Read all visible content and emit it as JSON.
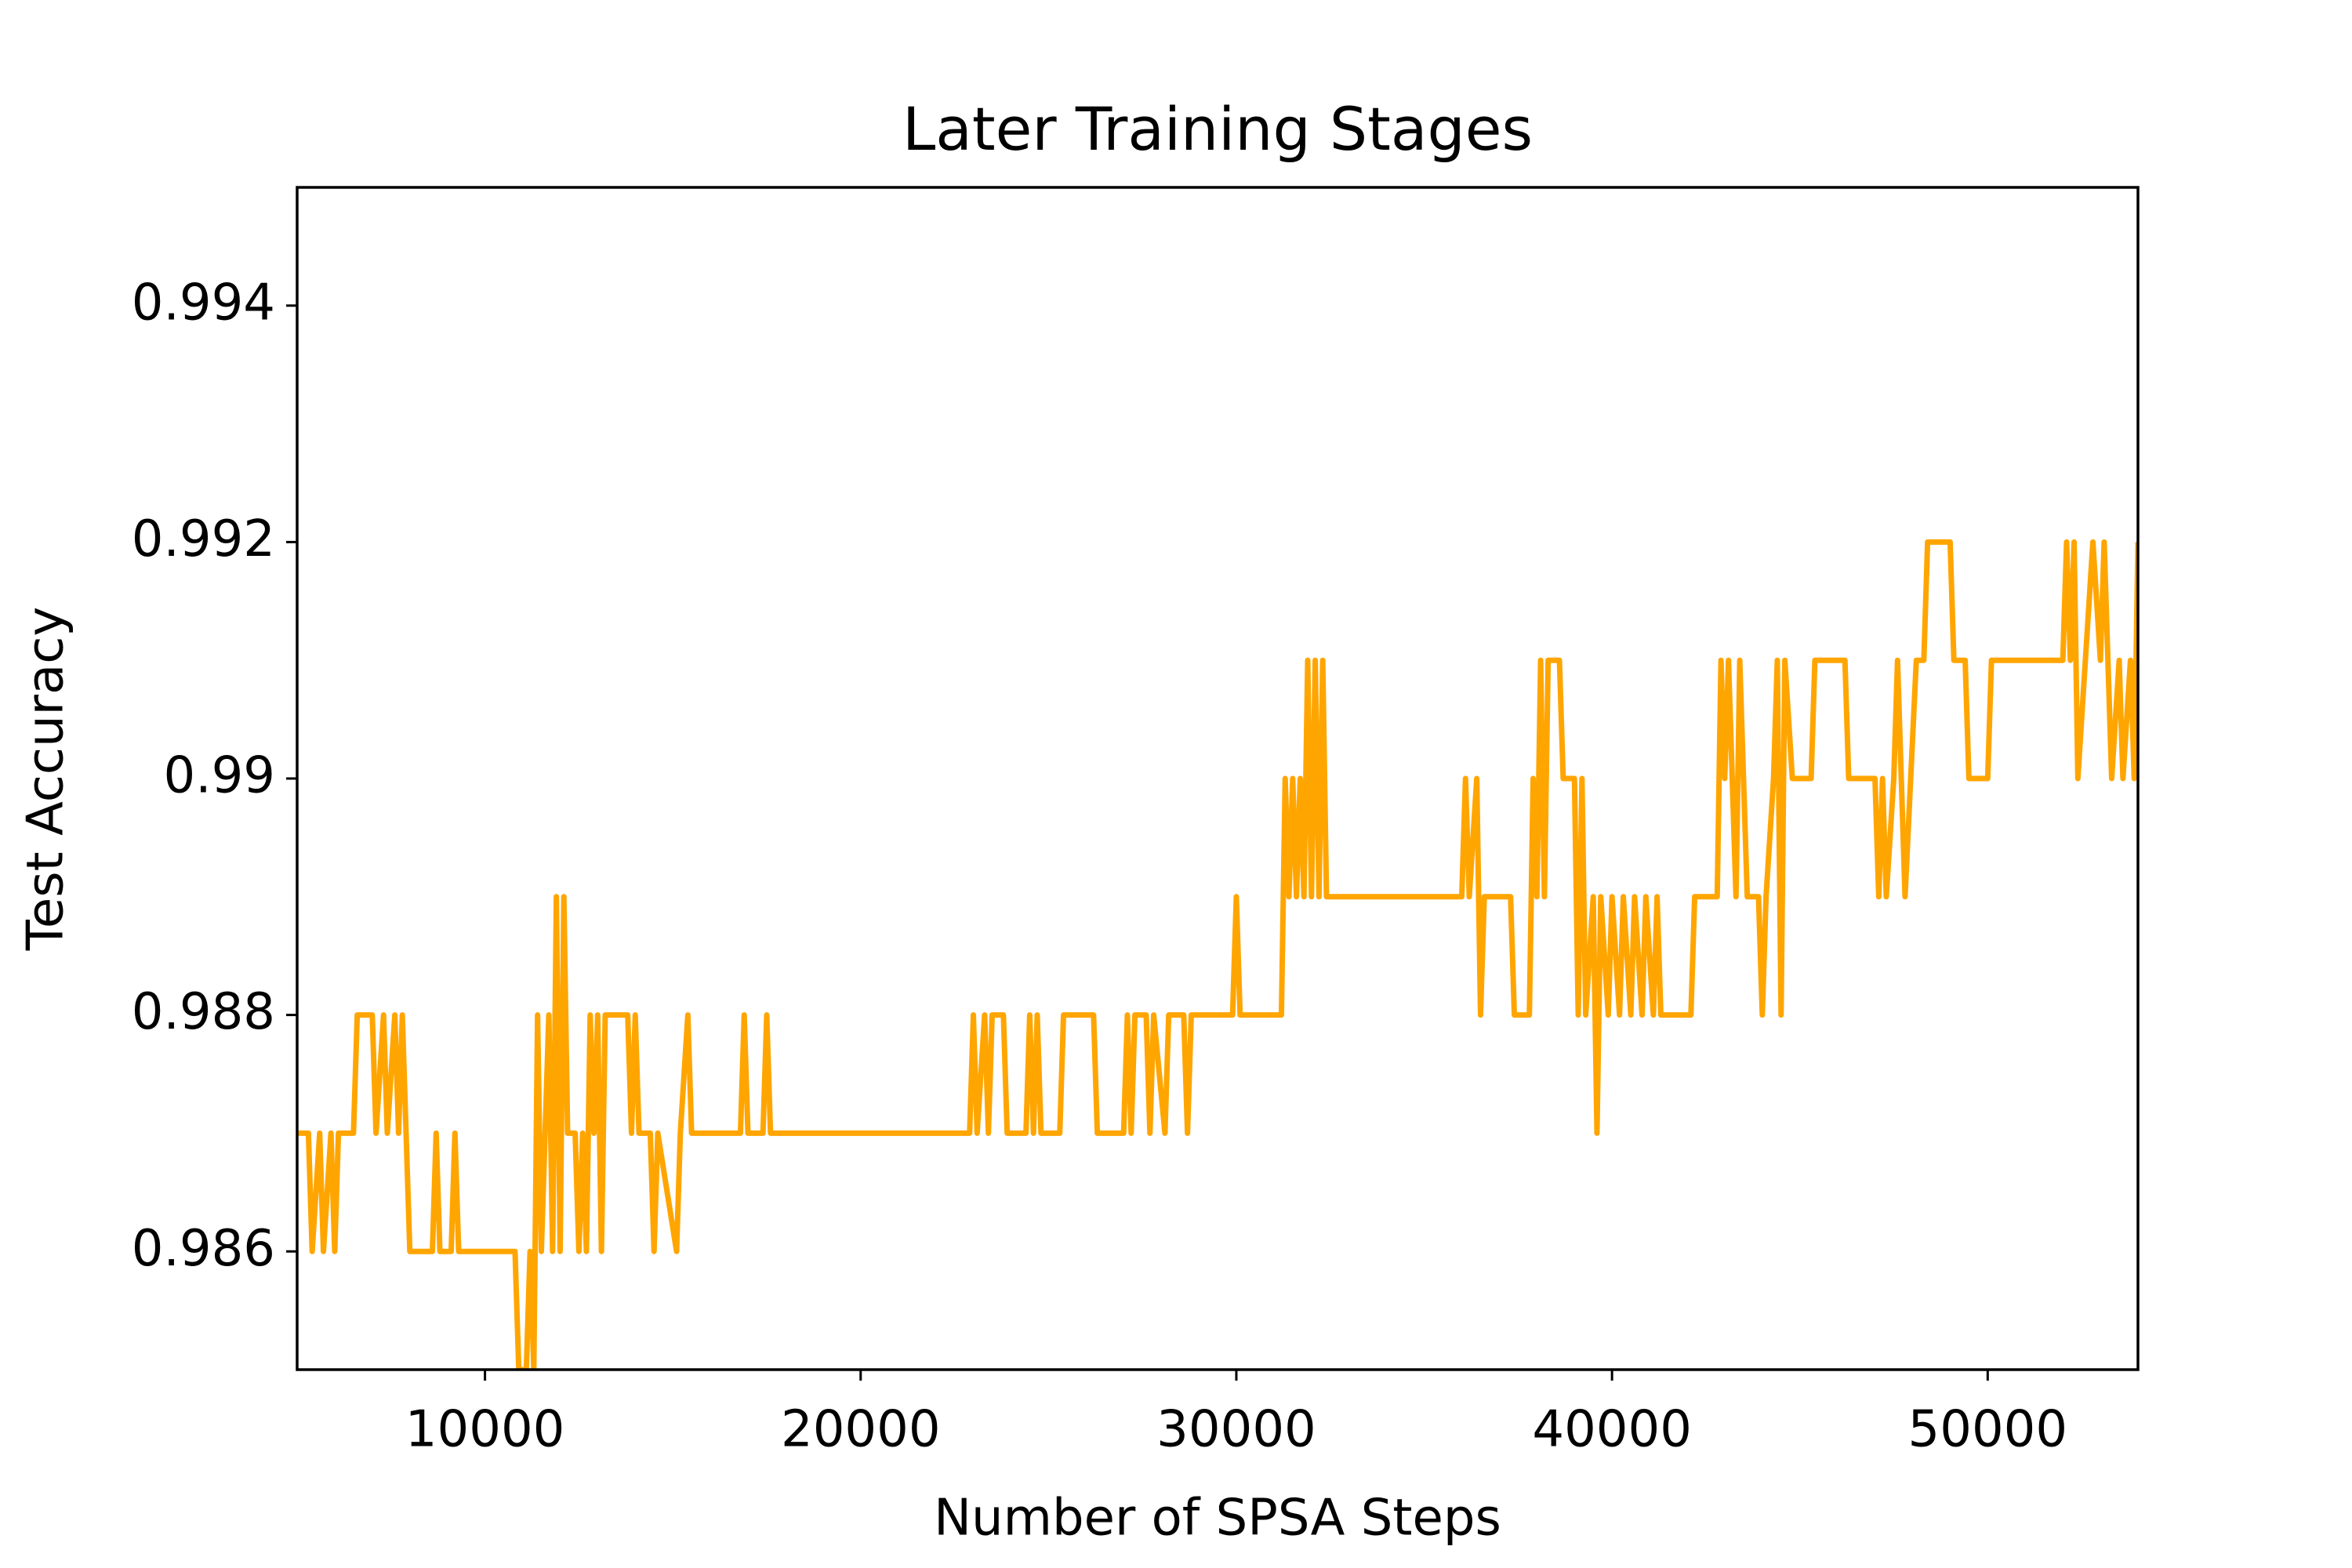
{
  "chart_data": {
    "type": "line",
    "title": "Later Training Stages",
    "x_label": "Number of SPSA Steps",
    "y_label": "Test Accuracy",
    "xlim": [
      5000,
      54000
    ],
    "ylim": [
      0.985,
      0.995
    ],
    "xticks": [
      10000,
      20000,
      30000,
      40000,
      50000
    ],
    "yticks": [
      0.986,
      0.988,
      0.99,
      0.992,
      0.994
    ],
    "x": [
      5000,
      5300,
      5400,
      5600,
      5700,
      5900,
      6000,
      6100,
      6500,
      6600,
      7000,
      7100,
      7300,
      7400,
      7600,
      7700,
      7800,
      7900,
      8000,
      8600,
      8700,
      8800,
      9100,
      9200,
      9300,
      10800,
      10900,
      11100,
      11200,
      11300,
      11400,
      11500,
      11700,
      11800,
      11900,
      12000,
      12100,
      12200,
      12400,
      12500,
      12600,
      12700,
      12800,
      12900,
      13000,
      13100,
      13200,
      13800,
      13900,
      14000,
      14100,
      14400,
      14500,
      14600,
      15100,
      15200,
      15400,
      15500,
      16800,
      16900,
      17000,
      17400,
      17500,
      17600,
      22900,
      23000,
      23100,
      23300,
      23400,
      23500,
      23800,
      23900,
      24400,
      24500,
      24600,
      24700,
      24800,
      25300,
      25400,
      26200,
      26300,
      27000,
      27100,
      27200,
      27300,
      27600,
      27700,
      27800,
      28100,
      28200,
      28600,
      28700,
      28800,
      29900,
      30000,
      30100,
      31200,
      31300,
      31400,
      31500,
      31600,
      31700,
      31800,
      31900,
      32000,
      32100,
      32200,
      32300,
      32400,
      36000,
      36100,
      36200,
      36400,
      36500,
      36600,
      37300,
      37400,
      37800,
      37900,
      38000,
      38100,
      38200,
      38300,
      38600,
      38700,
      39000,
      39100,
      39200,
      39300,
      39500,
      39600,
      39700,
      39900,
      40000,
      40200,
      40300,
      40500,
      40600,
      40800,
      40900,
      41100,
      41200,
      41300,
      42100,
      42200,
      42800,
      42900,
      43000,
      43100,
      43300,
      43400,
      43600,
      43900,
      44000,
      44100,
      44300,
      44400,
      44500,
      44600,
      44800,
      45300,
      45400,
      46200,
      46300,
      47000,
      47100,
      47200,
      47300,
      47500,
      47600,
      47700,
      47800,
      48100,
      48300,
      48400,
      49000,
      49100,
      49400,
      49500,
      50000,
      50100,
      52000,
      52100,
      52200,
      52300,
      52400,
      52600,
      52800,
      53000,
      53100,
      53300,
      53500,
      53600,
      53800,
      53900,
      54000
    ],
    "series": [
      {
        "name": "Test Accuracy",
        "color": "#ffa500",
        "values": [
          0.987,
          0.987,
          0.986,
          0.987,
          0.986,
          0.987,
          0.986,
          0.987,
          0.987,
          0.988,
          0.988,
          0.987,
          0.988,
          0.987,
          0.988,
          0.987,
          0.988,
          0.987,
          0.986,
          0.986,
          0.987,
          0.986,
          0.986,
          0.987,
          0.986,
          0.986,
          0.985,
          0.985,
          0.986,
          0.985,
          0.988,
          0.986,
          0.988,
          0.986,
          0.989,
          0.986,
          0.989,
          0.987,
          0.987,
          0.986,
          0.987,
          0.986,
          0.988,
          0.987,
          0.988,
          0.986,
          0.988,
          0.988,
          0.987,
          0.988,
          0.987,
          0.987,
          0.986,
          0.987,
          0.986,
          0.987,
          0.988,
          0.987,
          0.987,
          0.988,
          0.987,
          0.987,
          0.988,
          0.987,
          0.987,
          0.988,
          0.987,
          0.988,
          0.987,
          0.988,
          0.988,
          0.987,
          0.987,
          0.988,
          0.987,
          0.988,
          0.987,
          0.987,
          0.988,
          0.988,
          0.987,
          0.987,
          0.988,
          0.987,
          0.988,
          0.988,
          0.987,
          0.988,
          0.987,
          0.988,
          0.988,
          0.987,
          0.988,
          0.988,
          0.989,
          0.988,
          0.988,
          0.99,
          0.989,
          0.99,
          0.989,
          0.99,
          0.989,
          0.991,
          0.989,
          0.991,
          0.989,
          0.991,
          0.989,
          0.989,
          0.99,
          0.989,
          0.99,
          0.988,
          0.989,
          0.989,
          0.988,
          0.988,
          0.99,
          0.989,
          0.991,
          0.989,
          0.991,
          0.991,
          0.99,
          0.99,
          0.988,
          0.99,
          0.988,
          0.989,
          0.987,
          0.989,
          0.988,
          0.989,
          0.988,
          0.989,
          0.988,
          0.989,
          0.988,
          0.989,
          0.988,
          0.989,
          0.988,
          0.988,
          0.989,
          0.989,
          0.991,
          0.99,
          0.991,
          0.989,
          0.991,
          0.989,
          0.989,
          0.988,
          0.989,
          0.99,
          0.991,
          0.988,
          0.991,
          0.99,
          0.99,
          0.991,
          0.991,
          0.99,
          0.99,
          0.989,
          0.99,
          0.989,
          0.99,
          0.991,
          0.99,
          0.989,
          0.991,
          0.991,
          0.992,
          0.992,
          0.991,
          0.991,
          0.99,
          0.99,
          0.991,
          0.991,
          0.992,
          0.991,
          0.992,
          0.99,
          0.991,
          0.992,
          0.991,
          0.992,
          0.99,
          0.991,
          0.99,
          0.991,
          0.99,
          0.992
        ]
      }
    ]
  }
}
